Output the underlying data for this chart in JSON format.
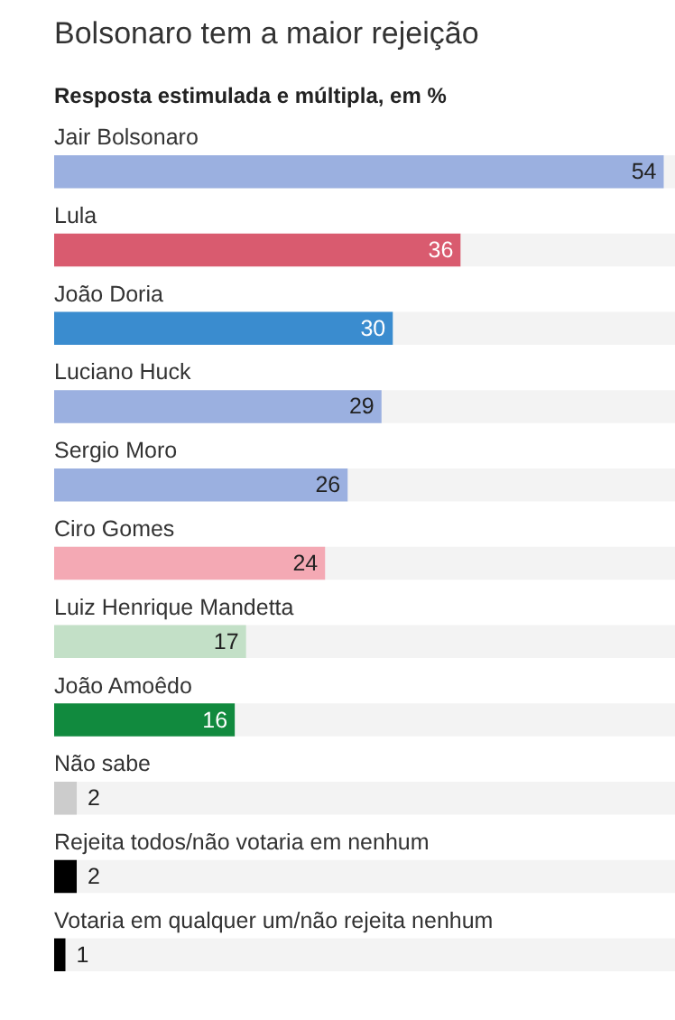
{
  "chart_data": {
    "type": "bar",
    "orientation": "horizontal",
    "title": "Bolsonaro tem a maior rejeição",
    "subtitle": "Resposta estimulada e múltipla, em %",
    "categories": [
      "Jair Bolsonaro",
      "Lula",
      "João Doria",
      "Luciano Huck",
      "Sergio Moro",
      "Ciro Gomes",
      "Luiz Henrique Mandetta",
      "João Amoêdo",
      "Não sabe",
      "Rejeita todos/não votaria em nenhum",
      "Votaria em qualquer um/não rejeita nenhum"
    ],
    "values": [
      54,
      36,
      30,
      29,
      26,
      24,
      17,
      16,
      2,
      2,
      1
    ],
    "colors": [
      "#9bb0e0",
      "#d95b6f",
      "#3a8ccf",
      "#9bb0e0",
      "#9bb0e0",
      "#f4a9b4",
      "#c3e0c7",
      "#118a3e",
      "#cccccc",
      "#000000",
      "#000000"
    ],
    "data_labels": true
  }
}
